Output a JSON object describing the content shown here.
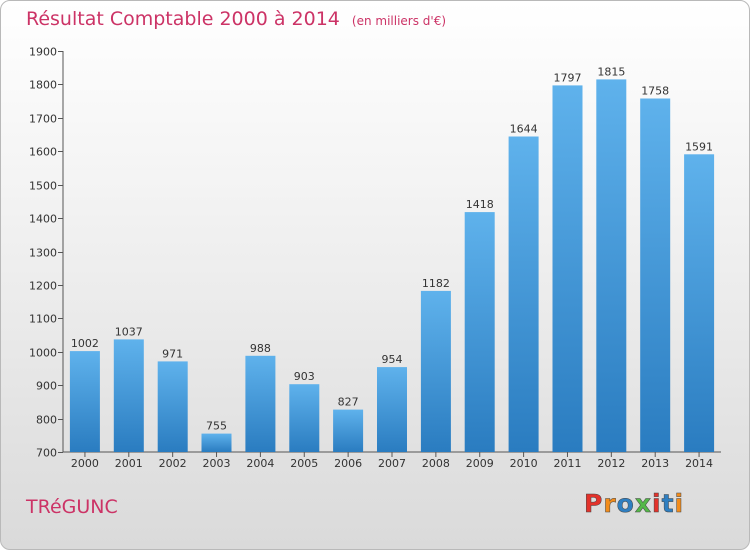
{
  "title": "Résultat Comptable 2000 à 2014",
  "subtitle": "(en milliers d'€)",
  "commune": "TRéGUNC",
  "logo_text": "Proxiti",
  "colors": {
    "title": "#cc3366",
    "bar_light": "#5fb2ec",
    "bar_dark": "#2a7cc0",
    "logo": [
      "#e3322b",
      "#f28c1b",
      "#2f7fc1",
      "#54b848",
      "#e3322b",
      "#2f7fc1",
      "#f28c1b"
    ]
  },
  "chart_data": {
    "type": "bar",
    "title": "Résultat Comptable 2000 à 2014",
    "subtitle": "(en milliers d'€)",
    "categories": [
      "2000",
      "2001",
      "2002",
      "2003",
      "2004",
      "2005",
      "2006",
      "2007",
      "2008",
      "2009",
      "2010",
      "2011",
      "2012",
      "2013",
      "2014"
    ],
    "values": [
      1002,
      1037,
      971,
      755,
      988,
      903,
      827,
      954,
      1182,
      1418,
      1644,
      1797,
      1815,
      1758,
      1591
    ],
    "ylim": [
      700,
      1900
    ],
    "yticks": [
      700,
      800,
      900,
      1000,
      1100,
      1200,
      1300,
      1400,
      1500,
      1600,
      1700,
      1800,
      1900
    ],
    "grid": false,
    "legend": "none"
  }
}
